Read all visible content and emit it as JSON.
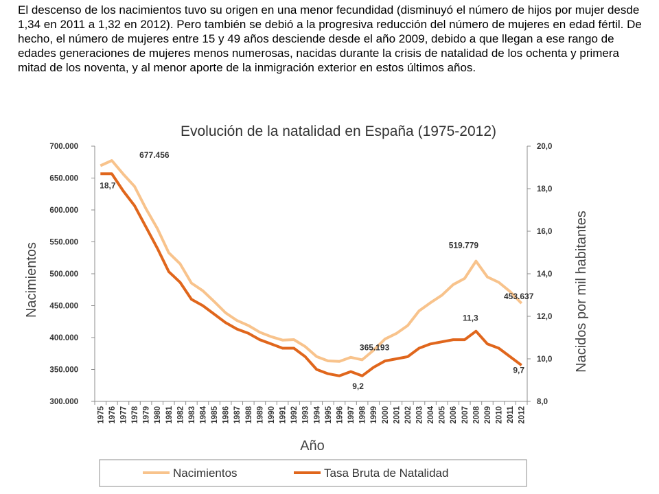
{
  "intro_text": "El descenso de los nacimientos tuvo su origen en una menor fecundidad (disminuyó el número de hijos por mujer desde 1,34 en 2011 a 1,32 en 2012). Pero también se debió a la progresiva reducción del número de mujeres en edad fértil. De hecho, el número de mujeres entre 15 y 49 años desciende desde el año 2009, debido a que llegan a ese rango de edades generaciones de mujeres menos numerosas, nacidas durante la crisis de natalidad de los ochenta y primera mitad de los noventa, y al menor aporte de la inmigración exterior en estos últimos años.",
  "chart_data": {
    "type": "line",
    "title": "Evolución de la natalidad en España (1975-2012)",
    "xlabel": "Año",
    "ylabel": "Nacimientos",
    "y2label": "Nacidos por mil habitantes",
    "ylim": [
      300000,
      700000
    ],
    "y2lim": [
      8,
      20
    ],
    "yticks": [
      "300.000",
      "350.000",
      "400.000",
      "450.000",
      "500.000",
      "550.000",
      "600.000",
      "650.000",
      "700.000"
    ],
    "y2ticks": [
      "8,0",
      "10,0",
      "12,0",
      "14,0",
      "16,0",
      "18,0",
      "20,0"
    ],
    "x": [
      "1975",
      "1976",
      "1977",
      "1978",
      "1979",
      "1980",
      "1981",
      "1982",
      "1983",
      "1984",
      "1985",
      "1986",
      "1987",
      "1988",
      "1989",
      "1990",
      "1991",
      "1992",
      "1993",
      "1994",
      "1995",
      "1996",
      "1997",
      "1998",
      "1999",
      "2000",
      "2001",
      "2002",
      "2003",
      "2004",
      "2005",
      "2006",
      "2007",
      "2008",
      "2009",
      "2010",
      "2011",
      "2012"
    ],
    "series": [
      {
        "name": "Nacimientos",
        "axis": "left",
        "color": "#f8c38c",
        "values": [
          669378,
          677456,
          656357,
          636892,
          601992,
          571018,
          533008,
          515706,
          485352,
          473281,
          456298,
          438750,
          426782,
          418919,
          408434,
          401425,
          395989,
          396747,
          385786,
          370148,
          363469,
          362626,
          369035,
          365193,
          380130,
          397632,
          406380,
          418846,
          441881,
          454591,
          466371,
          482957,
          492527,
          519779,
          494997,
          486575,
          471999,
          453637
        ]
      },
      {
        "name": "Tasa Bruta de Natalidad",
        "axis": "right",
        "color": "#e0661c",
        "values": [
          18.7,
          18.7,
          17.9,
          17.2,
          16.2,
          15.2,
          14.1,
          13.6,
          12.8,
          12.5,
          12.1,
          11.7,
          11.4,
          11.2,
          10.9,
          10.7,
          10.5,
          10.5,
          10.1,
          9.5,
          9.3,
          9.2,
          9.4,
          9.2,
          9.6,
          9.9,
          10.0,
          10.1,
          10.5,
          10.7,
          10.8,
          10.9,
          10.9,
          11.3,
          10.7,
          10.5,
          10.1,
          9.7
        ]
      }
    ],
    "annotations": [
      {
        "text": "677.456",
        "series": "Nacimientos",
        "year": "1976"
      },
      {
        "text": "18,7",
        "series": "Tasa Bruta de Natalidad",
        "year": "1976"
      },
      {
        "text": "365.193",
        "series": "Nacimientos",
        "year": "1998"
      },
      {
        "text": "9,2",
        "series": "Tasa Bruta de Natalidad",
        "year": "1998"
      },
      {
        "text": "519.779",
        "series": "Nacimientos",
        "year": "2008"
      },
      {
        "text": "11,3",
        "series": "Tasa Bruta de Natalidad",
        "year": "2008"
      },
      {
        "text": "453.637",
        "series": "Nacimientos",
        "year": "2012"
      },
      {
        "text": "9,7",
        "series": "Tasa Bruta de Natalidad",
        "year": "2012"
      }
    ],
    "legend_position": "bottom",
    "grid": false
  }
}
